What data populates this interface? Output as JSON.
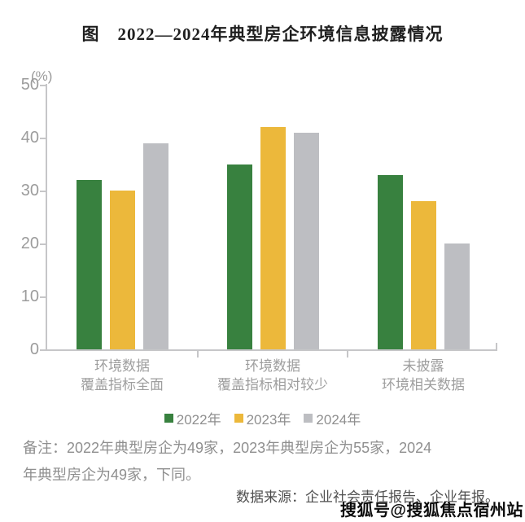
{
  "page": {
    "title": "图　2022—2024年典型房企环境信息披露情况",
    "note": "备注：2022年典型房企为49家，2023年典型房企为55家，2024\n年典型房企为49家，下同。",
    "source": "数据来源：企业社会责任报告、企业年报。",
    "watermark": "搜狐号@搜狐焦点宿州站"
  },
  "chart_data": {
    "type": "bar",
    "title": "图　2022—2024年典型房企环境信息披露情况",
    "unit_label": "(%)",
    "categories": [
      [
        "环境数据",
        "覆盖指标全面"
      ],
      [
        "环境数据",
        "覆盖指标相对较少"
      ],
      [
        "未披露",
        "环境相关数据"
      ]
    ],
    "series": [
      {
        "name": "2022年",
        "color": "#38813F",
        "values": [
          32,
          35,
          33
        ]
      },
      {
        "name": "2023年",
        "color": "#ECB83B",
        "values": [
          30,
          42,
          28
        ]
      },
      {
        "name": "2024年",
        "color": "#BDBEC2",
        "values": [
          39,
          41,
          20
        ]
      }
    ],
    "ylabel": "(%)",
    "ylim": [
      0,
      50
    ],
    "yticks": [
      0,
      10,
      20,
      30,
      40,
      50
    ],
    "grid": false,
    "legend_position": "bottom",
    "axis_color": "#c6c6c8",
    "tick_label_color": "#9c9c9c"
  }
}
